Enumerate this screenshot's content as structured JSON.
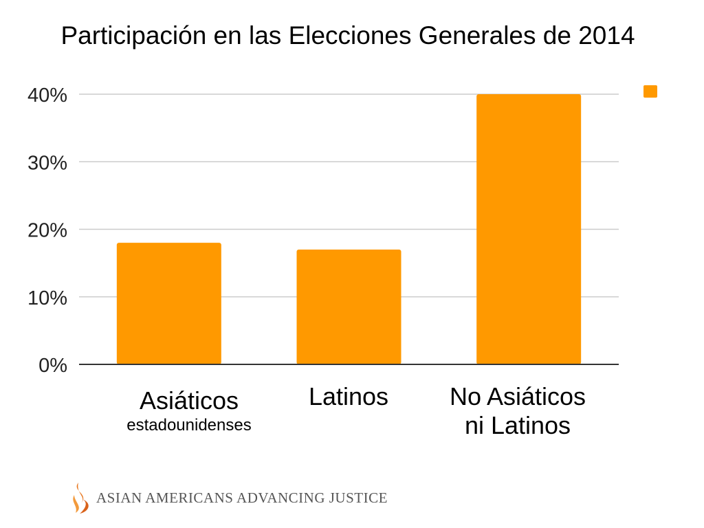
{
  "chart_data": {
    "type": "bar",
    "title": "Participación en las Elecciones Generales de 2014",
    "categories": [
      {
        "main": "Asiáticos",
        "sub": "estadounidenses"
      },
      {
        "main": "Latinos",
        "sub": ""
      },
      {
        "main": "No Asiáticos",
        "sub": "ni Latinos"
      }
    ],
    "values": [
      18,
      17,
      40
    ],
    "ylim": [
      0,
      40
    ],
    "yticks": [
      "0%",
      "10%",
      "20%",
      "30%",
      "40%"
    ],
    "ytick_values": [
      0,
      10,
      20,
      30,
      40
    ],
    "grid": true,
    "legend": "top-right",
    "bar_color": "#ff9900"
  },
  "logo": {
    "text": "ASIAN AMERICANS ADVANCING JUSTICE",
    "color": "#e8761d"
  }
}
